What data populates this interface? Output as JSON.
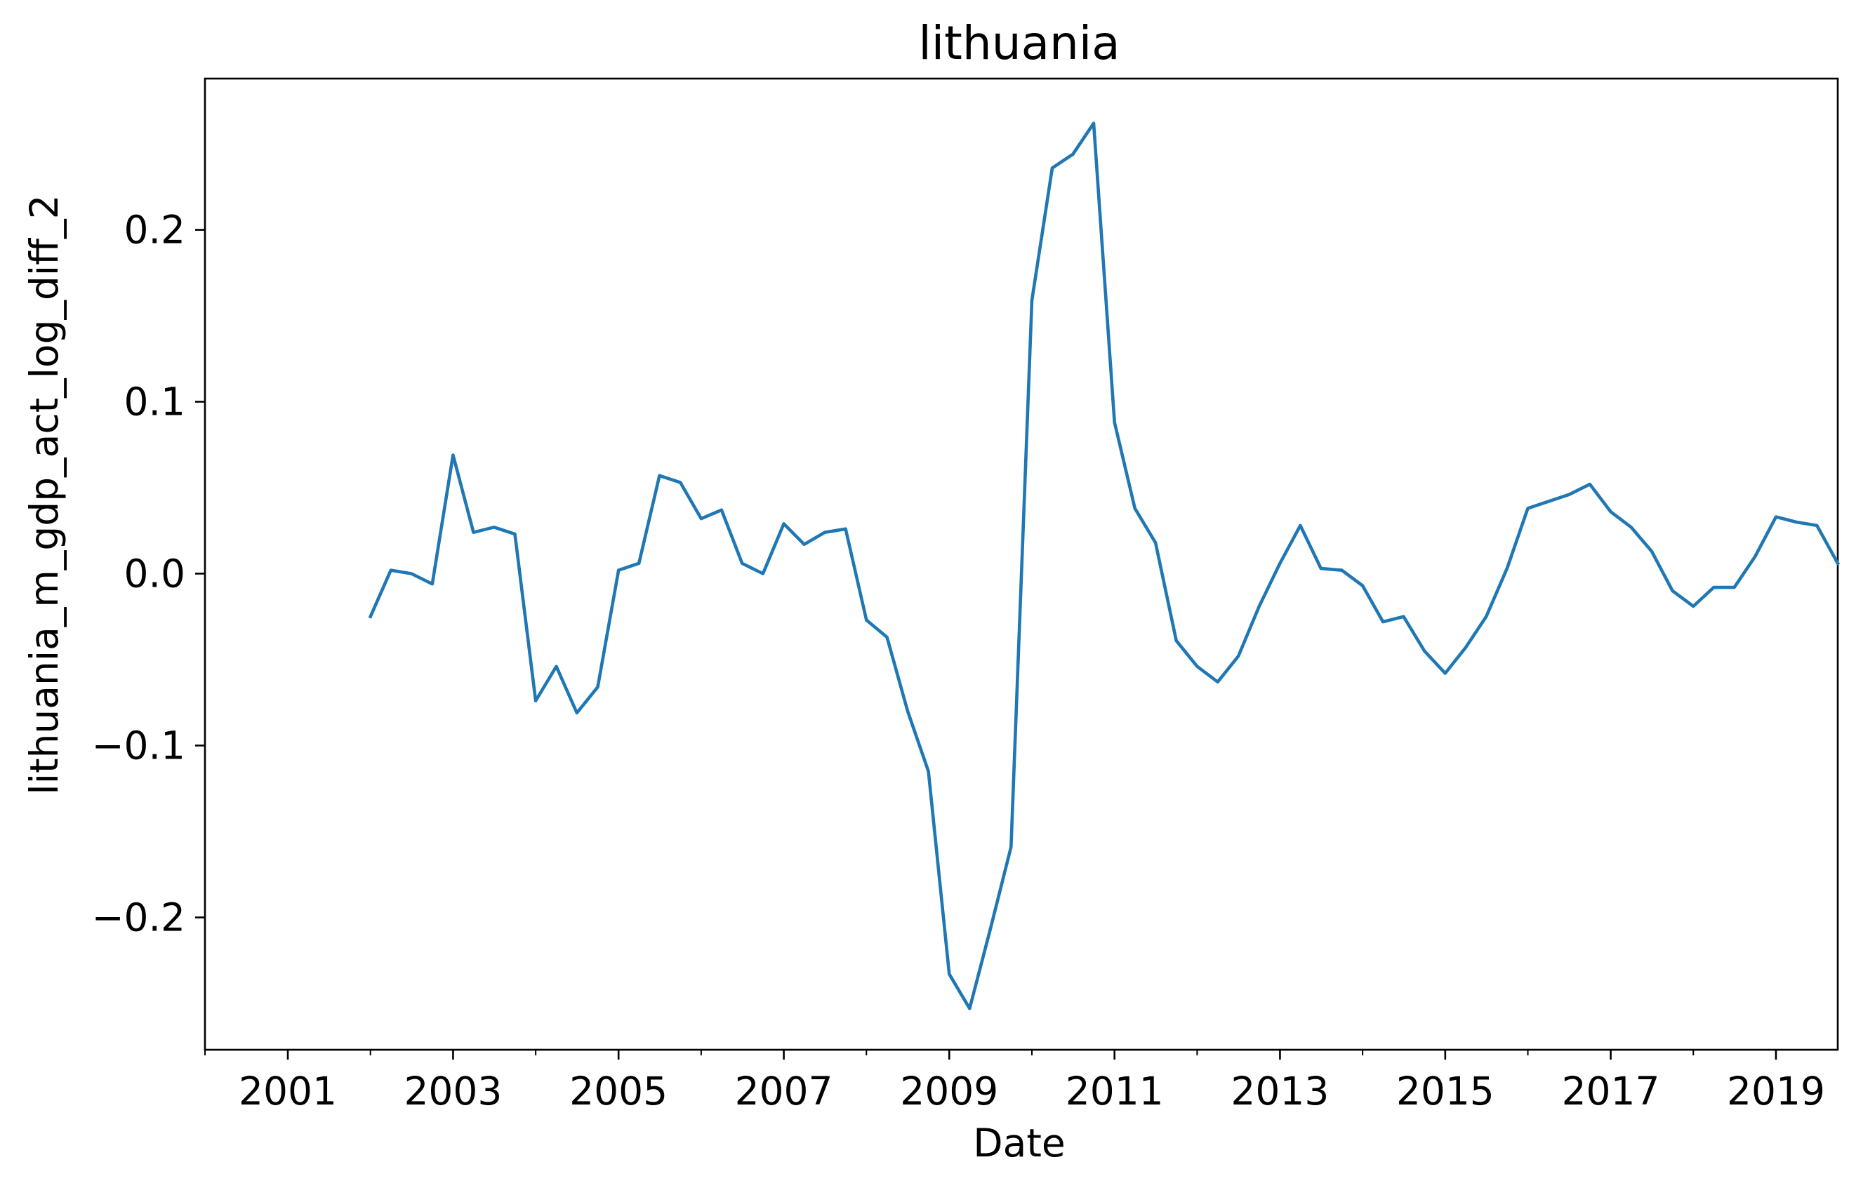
{
  "chart_data": {
    "type": "line",
    "title": "lithuania",
    "xlabel": "Date",
    "ylabel": "lithuania_m_gdp_act_log_diff_2",
    "xlim": [
      "2000-01-01",
      "2019-10-01"
    ],
    "ylim": [
      -0.277,
      0.288
    ],
    "grid": false,
    "x_ticks": [
      {
        "label": "2001",
        "date": "2001-01-01"
      },
      {
        "label": "2003",
        "date": "2003-01-01"
      },
      {
        "label": "2005",
        "date": "2005-01-01"
      },
      {
        "label": "2007",
        "date": "2007-01-01"
      },
      {
        "label": "2009",
        "date": "2009-01-01"
      },
      {
        "label": "2011",
        "date": "2011-01-01"
      },
      {
        "label": "2013",
        "date": "2013-01-01"
      },
      {
        "label": "2015",
        "date": "2015-01-01"
      },
      {
        "label": "2017",
        "date": "2017-01-01"
      },
      {
        "label": "2019",
        "date": "2019-01-01"
      }
    ],
    "minor_x_ticks": [
      "2000-01-01",
      "2002-01-01",
      "2004-01-01",
      "2006-01-01",
      "2008-01-01",
      "2010-01-01",
      "2012-01-01",
      "2014-01-01",
      "2016-01-01",
      "2018-01-01"
    ],
    "y_ticks": [
      {
        "label": "−0.2",
        "value": -0.2
      },
      {
        "label": "−0.1",
        "value": -0.1
      },
      {
        "label": "0.0",
        "value": 0.0
      },
      {
        "label": "0.1",
        "value": 0.1
      },
      {
        "label": "0.2",
        "value": 0.2
      }
    ],
    "series": [
      {
        "color": "#1f77b4",
        "x": [
          "2002-01-01",
          "2002-04-01",
          "2002-07-01",
          "2002-10-01",
          "2003-01-01",
          "2003-04-01",
          "2003-07-01",
          "2003-10-01",
          "2004-01-01",
          "2004-04-01",
          "2004-07-01",
          "2004-10-01",
          "2005-01-01",
          "2005-04-01",
          "2005-07-01",
          "2005-10-01",
          "2006-01-01",
          "2006-04-01",
          "2006-07-01",
          "2006-10-01",
          "2007-01-01",
          "2007-04-01",
          "2007-07-01",
          "2007-10-01",
          "2008-01-01",
          "2008-04-01",
          "2008-07-01",
          "2008-10-01",
          "2009-01-01",
          "2009-04-01",
          "2009-07-01",
          "2009-10-01",
          "2010-01-01",
          "2010-04-01",
          "2010-07-01",
          "2010-10-01",
          "2011-01-01",
          "2011-04-01",
          "2011-07-01",
          "2011-10-01",
          "2012-01-01",
          "2012-04-01",
          "2012-07-01",
          "2012-10-01",
          "2013-01-01",
          "2013-04-01",
          "2013-07-01",
          "2013-10-01",
          "2014-01-01",
          "2014-04-01",
          "2014-07-01",
          "2014-10-01",
          "2015-01-01",
          "2015-04-01",
          "2015-07-01",
          "2015-10-01",
          "2016-01-01",
          "2016-04-01",
          "2016-07-01",
          "2016-10-01",
          "2017-01-01",
          "2017-04-01",
          "2017-07-01",
          "2017-10-01",
          "2018-01-01",
          "2018-04-01",
          "2018-07-01",
          "2018-10-01",
          "2019-01-01",
          "2019-04-01",
          "2019-07-01",
          "2019-10-01"
        ],
        "y": [
          -0.025,
          0.002,
          0.0,
          -0.006,
          0.069,
          0.024,
          0.027,
          0.023,
          -0.074,
          -0.054,
          -0.081,
          -0.066,
          0.002,
          0.006,
          0.057,
          0.053,
          0.032,
          0.037,
          0.006,
          0.0,
          0.029,
          0.017,
          0.024,
          0.026,
          -0.027,
          -0.037,
          -0.08,
          -0.115,
          -0.233,
          -0.253,
          -0.207,
          -0.159,
          0.159,
          0.236,
          0.244,
          0.262,
          0.088,
          0.038,
          0.018,
          -0.039,
          -0.054,
          -0.063,
          -0.048,
          -0.019,
          0.006,
          0.028,
          0.003,
          0.002,
          -0.007,
          -0.028,
          -0.025,
          -0.045,
          -0.058,
          -0.043,
          -0.025,
          0.003,
          0.038,
          0.042,
          0.046,
          0.052,
          0.036,
          0.027,
          0.013,
          -0.01,
          -0.019,
          -0.008,
          -0.008,
          0.01,
          0.033,
          0.03,
          0.028,
          0.006
        ]
      }
    ]
  }
}
